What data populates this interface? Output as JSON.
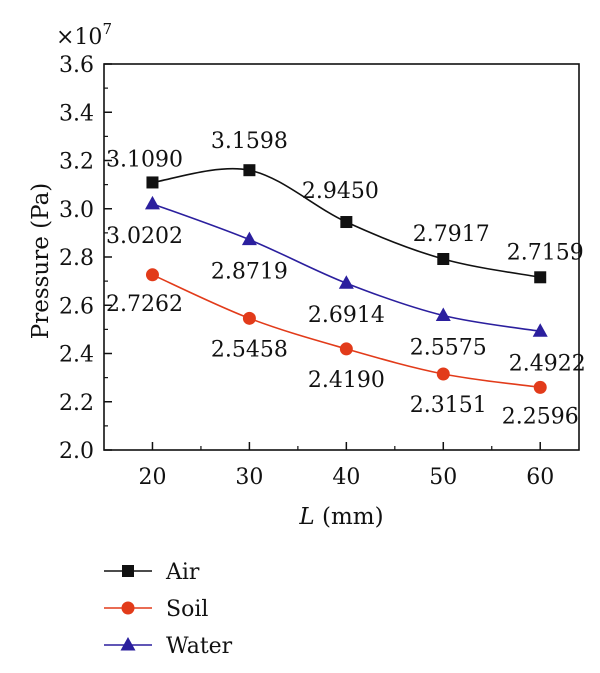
{
  "chart_data": {
    "type": "line",
    "xlabel_var": "L",
    "xlabel_unit": " (mm)",
    "ylabel": "Pressure (Pa)",
    "y_multiplier": "×10",
    "y_multiplier_exp": "7",
    "x": [
      20,
      30,
      40,
      50,
      60
    ],
    "xlim": [
      15,
      64
    ],
    "ylim": [
      2.0,
      3.6
    ],
    "xticks": [
      "20",
      "30",
      "40",
      "50",
      "60"
    ],
    "yticks": [
      "2.0",
      "2.2",
      "2.4",
      "2.6",
      "2.8",
      "3.0",
      "3.2",
      "3.4",
      "3.6"
    ],
    "ytick_values": [
      2.0,
      2.2,
      2.4,
      2.6,
      2.8,
      3.0,
      3.2,
      3.4,
      3.6
    ],
    "grid": false,
    "legend_position": "below",
    "series": [
      {
        "name": "Air",
        "marker": "square",
        "color": "#111111",
        "values": [
          3.109,
          3.1598,
          2.945,
          2.7917,
          2.7159
        ],
        "labels": [
          "3.1090",
          "3.1598",
          "2.9450",
          "2.7917",
          "2.7159"
        ]
      },
      {
        "name": "Soil",
        "marker": "circle",
        "color": "#e23b1a",
        "values": [
          2.7262,
          2.5458,
          2.419,
          2.3151,
          2.2596
        ],
        "labels": [
          "2.7262",
          "2.5458",
          "2.4190",
          "2.3151",
          "2.2596"
        ]
      },
      {
        "name": "Water",
        "marker": "triangle",
        "color": "#2b1f9e",
        "values": [
          3.0202,
          2.8719,
          2.6914,
          2.5575,
          2.4922
        ],
        "labels": [
          "3.0202",
          "2.8719",
          "2.6914",
          "2.5575",
          "2.4922"
        ]
      }
    ]
  }
}
